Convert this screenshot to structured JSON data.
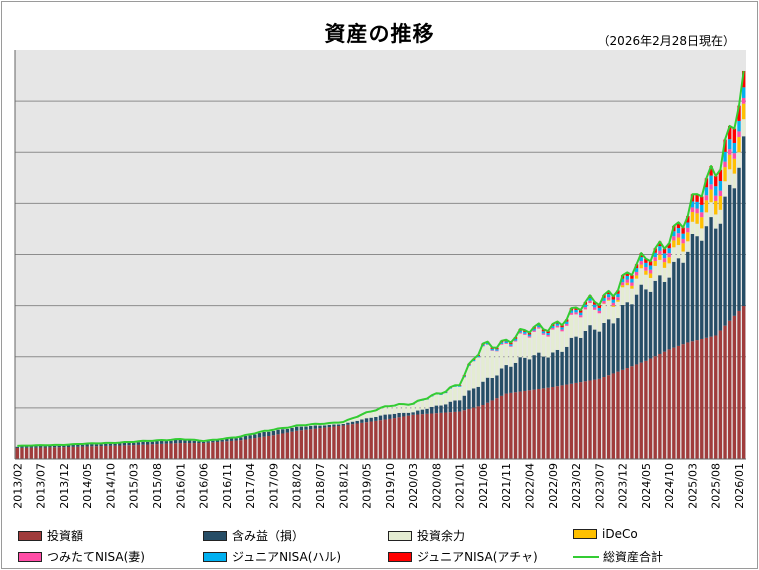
{
  "header": {
    "title": "資産の推移",
    "as_of": "（2026年2月28日現在）"
  },
  "colors": {
    "invest": "#a03c3c",
    "gain": "#264d66",
    "surplus": "#e4ecd2",
    "ideco": "#ffc000",
    "tsumitate": "#ff4da6",
    "junior_haru": "#00b0f0",
    "junior_acha": "#ff0000",
    "total": "#33cc33",
    "plot_bg": "#e6e6e6",
    "grid": "#8c8c8c"
  },
  "chart_data": {
    "type": "bar",
    "stacked": true,
    "title": "資産の推移",
    "subtitle": "（2026年2月28日現在）",
    "x_start": "2013/02",
    "x_end": "2026/02",
    "x_tick_labels": [
      "2013/02",
      "2013/07",
      "2013/12",
      "2014/05",
      "2014/10",
      "2015/03",
      "2015/08",
      "2016/01",
      "2016/06",
      "2016/11",
      "2017/04",
      "2017/09",
      "2018/02",
      "2018/07",
      "2018/12",
      "2019/05",
      "2019/10",
      "2020/03",
      "2020/08",
      "2021/01",
      "2021/06",
      "2021/11",
      "2022/04",
      "2022/09",
      "2023/02",
      "2023/07",
      "2023/12",
      "2024/05",
      "2024/10",
      "2025/03",
      "2025/08",
      "2026/01"
    ],
    "ylim": [
      0,
      100
    ],
    "y_gridlines": 7,
    "y_tick_labels": [],
    "ylabel": "",
    "xlabel": "",
    "legend_position": "bottom",
    "series_order": [
      "投資額",
      "含み益（損）",
      "投資余力",
      "iDeCo",
      "つみたてNISA(妻)",
      "ジュニアNISA(ハル)",
      "ジュニアNISA(アチャ)"
    ],
    "series_keys": [
      "invest",
      "gain",
      "surplus",
      "ideco",
      "tsumitate",
      "junior_haru",
      "junior_acha"
    ],
    "total_series": "総資産合計",
    "anchors": [
      {
        "i": 0,
        "invest": 2.7,
        "gain": 0.3,
        "surplus": 0.2,
        "ideco": 0,
        "tsumitate": 0,
        "junior_haru": 0,
        "junior_acha": 0
      },
      {
        "i": 10,
        "invest": 2.9,
        "gain": 0.4,
        "surplus": 0.2,
        "ideco": 0,
        "tsumitate": 0,
        "junior_haru": 0,
        "junior_acha": 0
      },
      {
        "i": 25,
        "invest": 3.4,
        "gain": 0.6,
        "surplus": 0.2,
        "ideco": 0,
        "tsumitate": 0,
        "junior_haru": 0,
        "junior_acha": 0
      },
      {
        "i": 35,
        "invest": 3.9,
        "gain": 0.8,
        "surplus": 0.2,
        "ideco": 0,
        "tsumitate": 0,
        "junior_haru": 0,
        "junior_acha": 0
      },
      {
        "i": 40,
        "invest": 3.9,
        "gain": 0.3,
        "surplus": 0.2,
        "ideco": 0,
        "tsumitate": 0,
        "junior_haru": 0,
        "junior_acha": 0
      },
      {
        "i": 48,
        "invest": 4.6,
        "gain": 0.7,
        "surplus": 0.2,
        "ideco": 0,
        "tsumitate": 0,
        "junior_haru": 0,
        "junior_acha": 0
      },
      {
        "i": 55,
        "invest": 5.8,
        "gain": 1.2,
        "surplus": 0.3,
        "ideco": 0,
        "tsumitate": 0,
        "junior_haru": 0,
        "junior_acha": 0
      },
      {
        "i": 60,
        "invest": 6.9,
        "gain": 0.9,
        "surplus": 0.3,
        "ideco": 0,
        "tsumitate": 0,
        "junior_haru": 0,
        "junior_acha": 0
      },
      {
        "i": 70,
        "invest": 8.2,
        "gain": 0.4,
        "surplus": 0.5,
        "ideco": 0,
        "tsumitate": 0,
        "junior_haru": 0,
        "junior_acha": 0
      },
      {
        "i": 80,
        "invest": 9.8,
        "gain": 1.3,
        "surplus": 2.0,
        "ideco": 0,
        "tsumitate": 0,
        "junior_haru": 0.1,
        "junior_acha": 0.1
      },
      {
        "i": 85,
        "invest": 10.8,
        "gain": 0.6,
        "surplus": 1.8,
        "ideco": 0,
        "tsumitate": 0,
        "junior_haru": 0.1,
        "junior_acha": 0.1
      },
      {
        "i": 95,
        "invest": 11.6,
        "gain": 3.0,
        "surplus": 3.5,
        "ideco": 0,
        "tsumitate": 0,
        "junior_haru": 0.2,
        "junior_acha": 0.2
      },
      {
        "i": 100,
        "invest": 13.2,
        "gain": 5.4,
        "surplus": 8.3,
        "ideco": 0,
        "tsumitate": 0.1,
        "junior_haru": 0.3,
        "junior_acha": 0.3
      },
      {
        "i": 105,
        "invest": 16.0,
        "gain": 7.0,
        "surplus": 5.2,
        "ideco": 0,
        "tsumitate": 0.2,
        "junior_haru": 0.4,
        "junior_acha": 0.4
      },
      {
        "i": 115,
        "invest": 17.6,
        "gain": 8.5,
        "surplus": 5.6,
        "ideco": 0,
        "tsumitate": 0.4,
        "junior_haru": 0.5,
        "junior_acha": 0.5
      },
      {
        "i": 125,
        "invest": 19.6,
        "gain": 12.8,
        "surplus": 4.8,
        "ideco": 0,
        "tsumitate": 0.6,
        "junior_haru": 0.7,
        "junior_acha": 0.7
      },
      {
        "i": 135,
        "invest": 24.0,
        "gain": 17.0,
        "surplus": 3.5,
        "ideco": 1.0,
        "tsumitate": 0.9,
        "junior_haru": 1.0,
        "junior_acha": 1.0
      },
      {
        "i": 140,
        "invest": 26.8,
        "gain": 20.0,
        "surplus": 3.8,
        "ideco": 1.5,
        "tsumitate": 1.0,
        "junior_haru": 1.2,
        "junior_acha": 1.2
      },
      {
        "i": 144,
        "invest": 28.5,
        "gain": 21.5,
        "surplus": 2.5,
        "ideco": 2.2,
        "tsumitate": 1.1,
        "junior_haru": 1.3,
        "junior_acha": 1.6
      },
      {
        "i": 150,
        "invest": 30.2,
        "gain": 29.0,
        "surplus": 3.7,
        "ideco": 3.3,
        "tsumitate": 1.3,
        "junior_haru": 2.3,
        "junior_acha": 2.5
      },
      {
        "i": 156,
        "invest": 37.4,
        "gain": 36.4,
        "surplus": 3.8,
        "ideco": 3.8,
        "tsumitate": 1.4,
        "junior_haru": 2.6,
        "junior_acha": 4.0
      }
    ]
  },
  "legend": [
    {
      "label": "投資額",
      "color_key": "invest",
      "kind": "box"
    },
    {
      "label": "含み益（損）",
      "color_key": "gain",
      "kind": "box"
    },
    {
      "label": "投資余力",
      "color_key": "surplus",
      "kind": "box"
    },
    {
      "label": "iDeCo",
      "color_key": "ideco",
      "kind": "box"
    },
    {
      "label": "つみたてNISA(妻)",
      "color_key": "tsumitate",
      "kind": "box"
    },
    {
      "label": "ジュニアNISA(ハル)",
      "color_key": "junior_haru",
      "kind": "box"
    },
    {
      "label": "ジュニアNISA(アチャ)",
      "color_key": "junior_acha",
      "kind": "box"
    },
    {
      "label": "総資産合計",
      "color_key": "total",
      "kind": "line"
    }
  ]
}
